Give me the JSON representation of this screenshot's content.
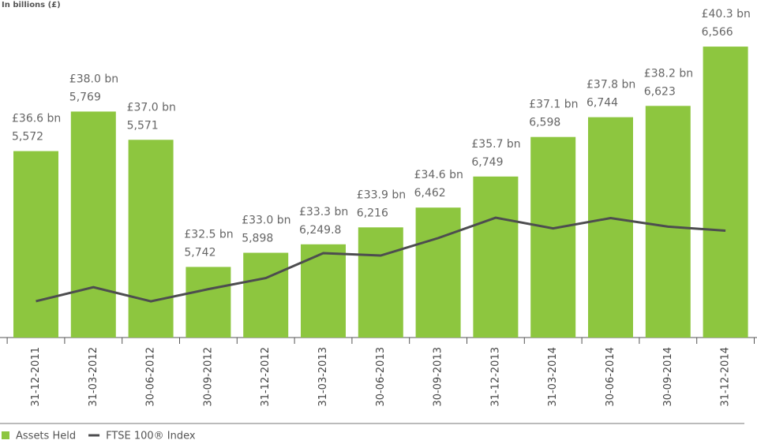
{
  "chart_data": {
    "type": "bar",
    "title": "In billions (£)",
    "categories": [
      "31-12-2011",
      "31-03-2012",
      "30-06-2012",
      "30-09-2012",
      "31-12-2012",
      "31-03-2013",
      "30-06-2013",
      "30-09-2013",
      "31-12-2013",
      "31-03-2014",
      "30-06-2014",
      "30-09-2014",
      "31-12-2014"
    ],
    "series": [
      {
        "name": "Assets Held",
        "type": "bar",
        "color": "#8dc63f",
        "values": [
          36.6,
          38.0,
          37.0,
          32.5,
          33.0,
          33.3,
          33.9,
          34.6,
          35.7,
          37.1,
          37.8,
          38.2,
          40.3
        ],
        "value_labels": [
          "£36.6 bn",
          "£38.0 bn",
          "£37.0 bn",
          "£32.5 bn",
          "£33.0 bn",
          "£33.3 bn",
          "£33.9 bn",
          "£34.6 bn",
          "£35.7 bn",
          "£37.1 bn",
          "£37.8 bn",
          "£38.2 bn",
          "£40.3 bn"
        ]
      },
      {
        "name": "FTSE 100® Index",
        "type": "line",
        "axis": "y2",
        "color": "#4d4d4f",
        "values": [
          5572,
          5769,
          5571,
          5742,
          5898,
          6249.8,
          6216,
          6462,
          6749,
          6598,
          6744,
          6623,
          6566
        ],
        "value_labels": [
          "5,572",
          "5,769",
          "5,571",
          "5,742",
          "5,898",
          "6,249.8",
          "6,216",
          "6,462",
          "6,749",
          "6,598",
          "6,744",
          "6,623",
          "6,566"
        ]
      }
    ],
    "ylim": [
      30,
      41
    ],
    "y2lim": [
      5060,
      9440
    ]
  }
}
